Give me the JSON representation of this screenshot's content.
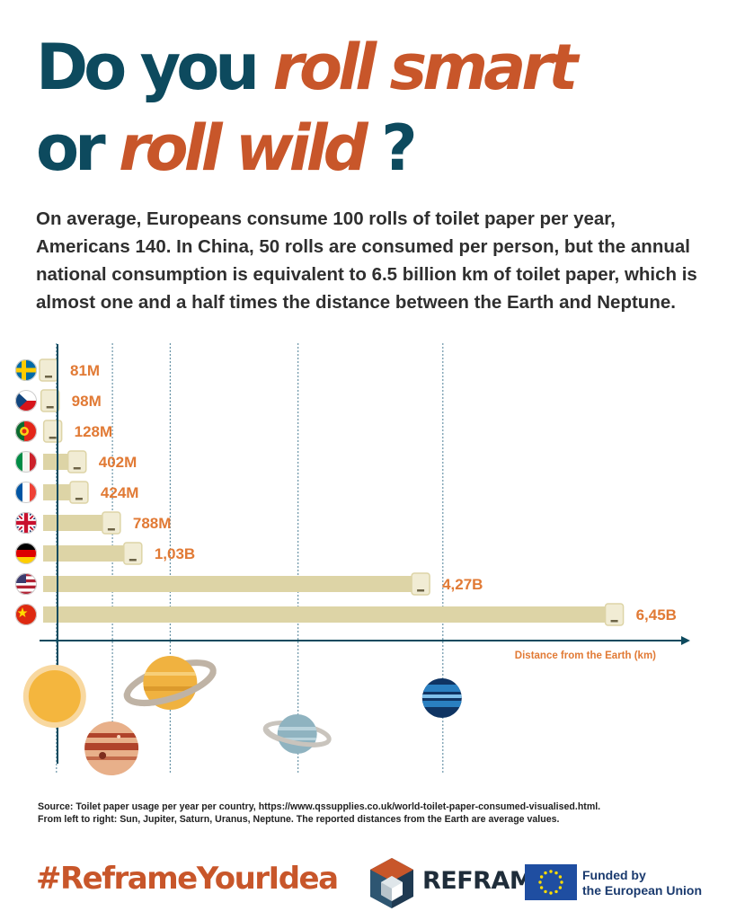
{
  "title": {
    "line1_plain": "Do you",
    "line1_accent": "roll smart",
    "line2_plain": "or",
    "line2_accent": "roll wild",
    "line2_end": "?"
  },
  "intro": "On average, Europeans consume 100 rolls of toilet paper per year, Americans 140. In China, 50 rolls are consumed per person, but the annual national consumption is equivalent to 6.5 billion km of toilet paper, which is almost one and a half times the distance between the Earth and Neptune.",
  "chart_data": {
    "type": "bar",
    "orientation": "horizontal",
    "categories": [
      "Sweden",
      "Czech Republic",
      "Portugal",
      "Italy",
      "France",
      "United Kingdom",
      "Germany",
      "United States",
      "China"
    ],
    "values": [
      0.081,
      0.098,
      0.128,
      0.402,
      0.424,
      0.788,
      1.03,
      4.27,
      6.45
    ],
    "value_unit": "billion km",
    "data_labels": [
      "81M",
      "98M",
      "128M",
      "402M",
      "424M",
      "788M",
      "1,03B",
      "4,27B",
      "6,45B"
    ],
    "xlabel": "Distance from the Earth (km)",
    "xlim": [
      0,
      6.95
    ],
    "planets": [
      {
        "name": "Sun",
        "distance": 0.15,
        "color": "#f4b63e"
      },
      {
        "name": "Jupiter",
        "distance": 0.78,
        "color": "#e8b08a"
      },
      {
        "name": "Saturn",
        "distance": 1.43,
        "color": "#f0b240"
      },
      {
        "name": "Uranus",
        "distance": 2.87,
        "color": "#8fb3c0"
      },
      {
        "name": "Neptune",
        "distance": 4.5,
        "color": "#1f5e8e"
      }
    ],
    "colors": {
      "bar": "#ddd4a6",
      "roll_end": "#f1ecd4",
      "label": "#e17a35",
      "axis": "#0d4a5e"
    }
  },
  "footer": {
    "source_line1": "Source: Toilet paper usage per year per country, https://www.qssupplies.co.uk/world-toilet-paper-consumed-visualised.html.",
    "source_line2": "From left to right: Sun, Jupiter, Saturn, Uranus, Neptune.  The reported distances from the Earth are average values.",
    "hashtag": "#ReframeYourIdea",
    "brand": "REFRAME",
    "funded_line1": "Funded by",
    "funded_line2": "the European Union"
  }
}
